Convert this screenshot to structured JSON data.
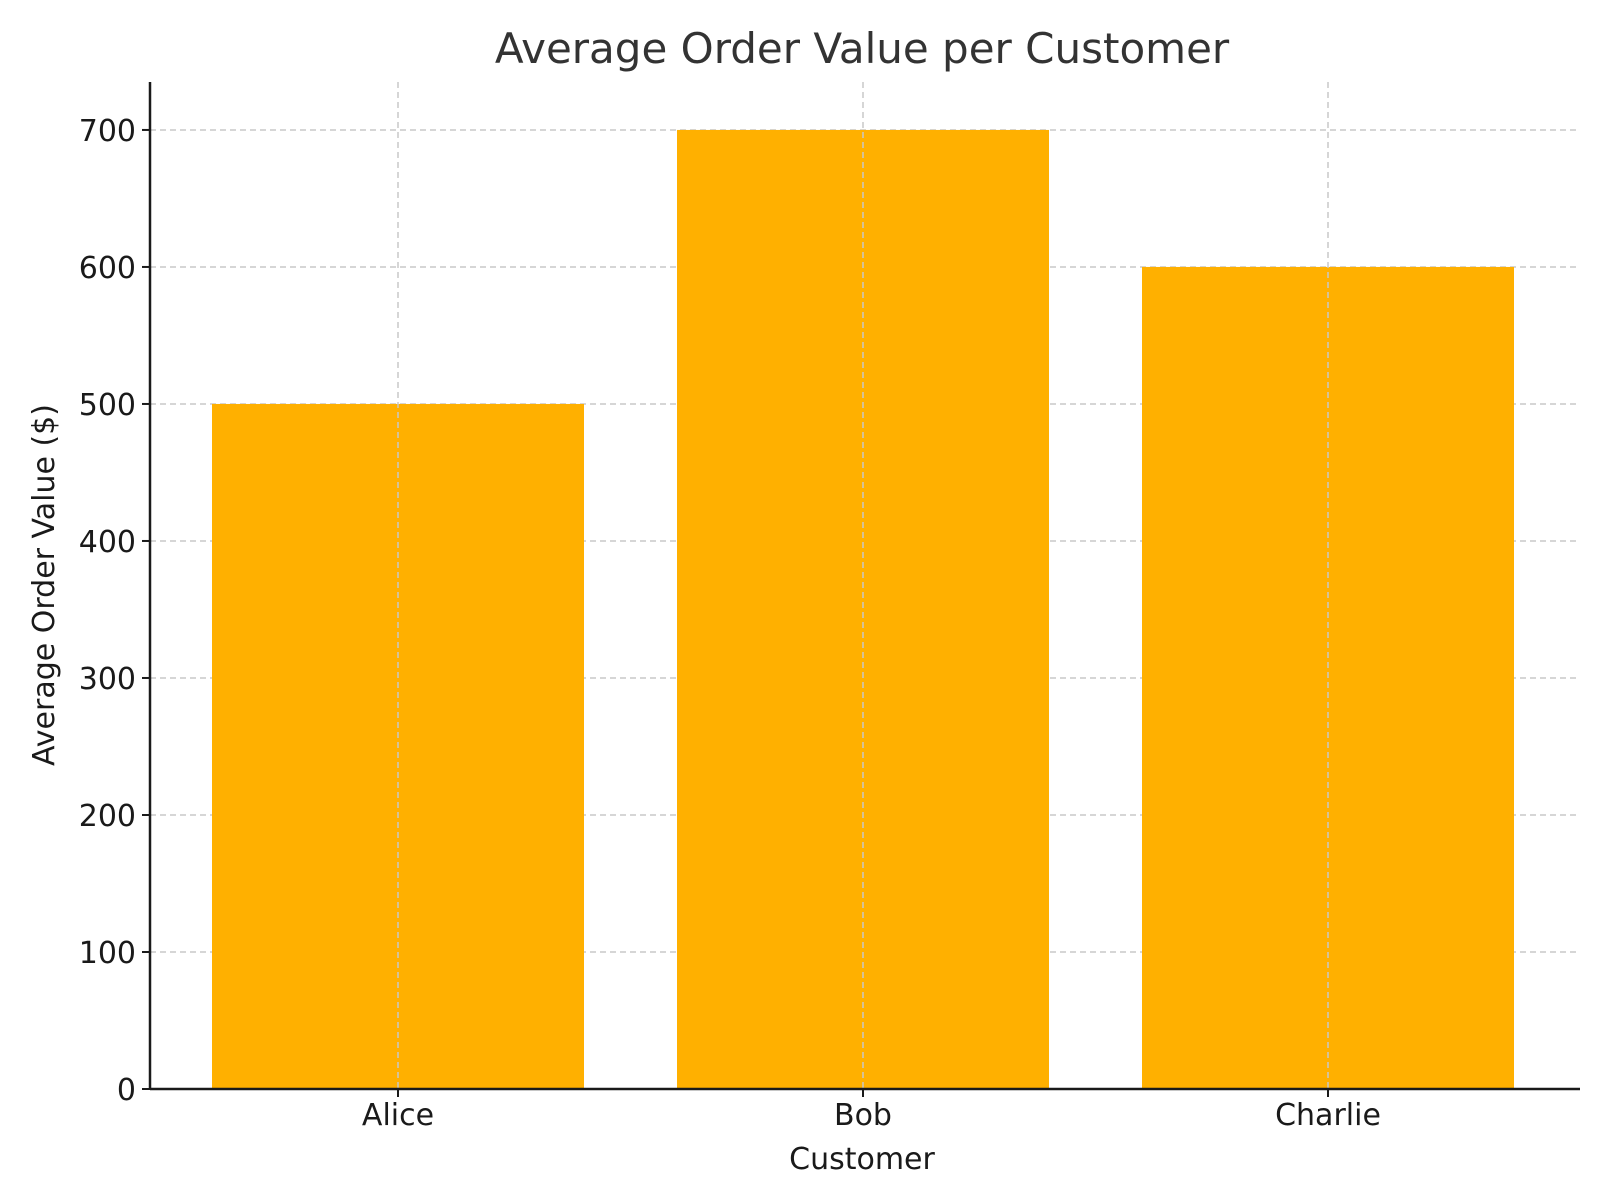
{
  "chart_data": {
    "type": "bar",
    "title": "Average Order Value per Customer",
    "xlabel": "Customer",
    "ylabel": "Average Order Value ($)",
    "categories": [
      "Alice",
      "Bob",
      "Charlie"
    ],
    "values": [
      500,
      700,
      600
    ],
    "ylim": [
      0,
      735
    ],
    "yticks": [
      0,
      100,
      200,
      300,
      400,
      500,
      600,
      700
    ],
    "ytick_labels": [
      "0",
      "100",
      "200",
      "300",
      "400",
      "500",
      "600",
      "700"
    ],
    "grid": true,
    "legend": "none",
    "colors": {
      "bar": "#FFB000"
    }
  }
}
